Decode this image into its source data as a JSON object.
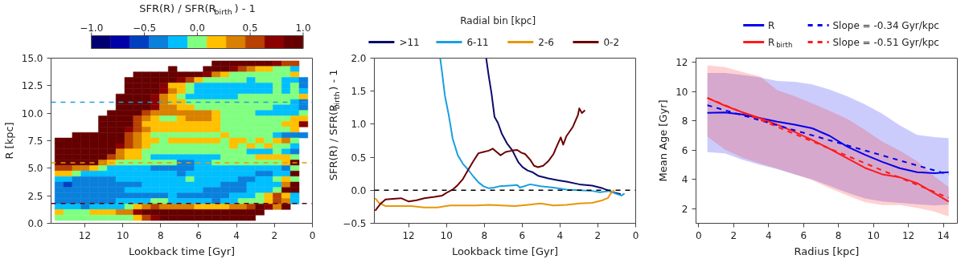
{
  "chart_data": [
    {
      "type": "heatmap",
      "xlabel": "Lookback time [Gyr]",
      "ylabel": "R [kpc]",
      "clabel": "SFR(R) / SFR(R$_{birth}$) - 1",
      "x": [
        13.35,
        12.89,
        12.43,
        11.97,
        11.51,
        11.05,
        10.59,
        10.13,
        9.67,
        9.21,
        8.75,
        8.29,
        7.83,
        7.37,
        6.91,
        6.45,
        5.99,
        5.53,
        5.07,
        4.61,
        4.15,
        3.69,
        3.23,
        2.77,
        2.31,
        1.85,
        1.39,
        0.93,
        0.47
      ],
      "y": [
        14.5,
        14.0,
        13.5,
        13.0,
        12.5,
        12.0,
        11.5,
        11.0,
        10.5,
        10.0,
        9.5,
        9.0,
        8.5,
        8.0,
        7.5,
        7.0,
        6.5,
        6.0,
        5.5,
        5.0,
        4.5,
        4.0,
        3.5,
        3.0,
        2.5,
        2.0,
        1.5,
        1.0,
        0.5
      ],
      "cells": [
        [
          null,
          null,
          null,
          null,
          null,
          null,
          null,
          null,
          null,
          null,
          null,
          null,
          null,
          null,
          null,
          null,
          null,
          null,
          0.9,
          0.9,
          0.9,
          0.9,
          0.9,
          0.9,
          0.9,
          0.7,
          0.5,
          0.5,
          null
        ],
        [
          null,
          null,
          null,
          null,
          null,
          null,
          null,
          null,
          null,
          null,
          null,
          null,
          null,
          0.9,
          null,
          null,
          null,
          0.9,
          0.9,
          0.9,
          0.7,
          0.5,
          0.4,
          0.2,
          0.2,
          0,
          0,
          -0.2,
          null
        ],
        [
          null,
          null,
          null,
          null,
          null,
          null,
          null,
          null,
          null,
          0.9,
          0.9,
          0.9,
          0.9,
          0.9,
          0.9,
          0.9,
          0.9,
          0.7,
          0.4,
          0.2,
          0,
          0,
          0,
          0,
          0,
          0,
          0,
          0.2,
          null
        ],
        [
          null,
          null,
          null,
          null,
          null,
          null,
          null,
          null,
          0.9,
          0.9,
          0.9,
          0.9,
          0.9,
          0.9,
          0.7,
          0.5,
          0.2,
          0,
          0,
          0,
          0,
          0,
          -0.2,
          0,
          0,
          0,
          -0.2,
          -0.2,
          -0.4
        ],
        [
          null,
          null,
          null,
          null,
          null,
          null,
          null,
          null,
          0.9,
          0.9,
          0.9,
          0.9,
          0.7,
          0.2,
          0.2,
          0,
          -0.2,
          -0.2,
          -0.2,
          -0.2,
          -0.2,
          -0.2,
          -0.2,
          -0.2,
          -0.2,
          0,
          -0.2,
          0,
          -0.4
        ],
        [
          null,
          null,
          null,
          null,
          null,
          null,
          null,
          null,
          0.9,
          0.9,
          0.9,
          0.9,
          0.7,
          0.4,
          0.2,
          0,
          -0.2,
          -0.2,
          -0.2,
          -0.2,
          -0.2,
          -0.2,
          -0.2,
          -0.2,
          -0.2,
          0,
          -0.2,
          0,
          -0.2
        ],
        [
          null,
          null,
          null,
          null,
          null,
          null,
          null,
          0.9,
          0.9,
          0.9,
          0.9,
          0.7,
          0.4,
          0.2,
          0,
          -0.2,
          -0.2,
          -0.2,
          -0.2,
          -0.2,
          -0.2,
          0,
          0,
          0,
          0,
          0,
          0,
          0,
          0.2
        ],
        [
          null,
          null,
          null,
          null,
          null,
          null,
          null,
          0.9,
          0.9,
          0.9,
          0.9,
          0.7,
          0.4,
          0.2,
          0.2,
          0,
          0,
          0,
          0,
          0,
          0,
          0,
          0,
          0,
          0,
          0,
          0,
          -0.2,
          -0.4
        ],
        [
          null,
          null,
          null,
          null,
          null,
          null,
          null,
          0.9,
          0.9,
          0.9,
          0.9,
          0.7,
          0.4,
          0.4,
          0.2,
          0.2,
          0,
          0,
          0,
          0,
          0,
          0,
          0,
          0,
          0,
          -0.2,
          -0.2,
          -0.2,
          -0.4
        ],
        [
          null,
          null,
          null,
          null,
          null,
          null,
          0.9,
          0.9,
          0.9,
          0.9,
          0.5,
          0.4,
          0.4,
          0.4,
          0.4,
          0.4,
          0.4,
          0.4,
          0.2,
          0,
          0,
          0,
          0,
          -0.2,
          -0.2,
          -0.2,
          -0.2,
          -0.2,
          0
        ],
        [
          null,
          null,
          null,
          null,
          null,
          0.9,
          0.9,
          0.9,
          0.9,
          0.5,
          0.4,
          0.2,
          0,
          0,
          0.2,
          0.4,
          0.4,
          0.4,
          0.2,
          0,
          0,
          0,
          0,
          0,
          0,
          0,
          0,
          0.2,
          0.2
        ],
        [
          null,
          null,
          null,
          null,
          null,
          0.9,
          0.9,
          0.9,
          0.9,
          0.5,
          0.2,
          0.2,
          0.2,
          0.2,
          0.2,
          0.2,
          0.2,
          0.2,
          0.2,
          0,
          0,
          0,
          0,
          0,
          0,
          0,
          0.2,
          0.2,
          0.7
        ],
        [
          null,
          null,
          null,
          null,
          null,
          0.9,
          0.9,
          0.9,
          0.7,
          0.5,
          0.4,
          0.2,
          0.2,
          0.2,
          0.2,
          0.2,
          0.2,
          0.2,
          0.2,
          0,
          0,
          0,
          0,
          0,
          0,
          0,
          0,
          0.2,
          null
        ],
        [
          null,
          null,
          0.9,
          0.9,
          0.9,
          0.9,
          0.9,
          0.9,
          0.5,
          0.4,
          0.2,
          0,
          0,
          0,
          0,
          0,
          0,
          0,
          0,
          0.2,
          0,
          0,
          0,
          0,
          0,
          -0.2,
          -0.4,
          -0.4,
          -0.4
        ],
        [
          0.9,
          0.9,
          0.9,
          0.9,
          0.9,
          0.9,
          0.9,
          0.9,
          0.5,
          0.4,
          0.2,
          0.2,
          0,
          0.2,
          0.2,
          0.2,
          0.2,
          0.2,
          0.2,
          0,
          0.2,
          0.2,
          0,
          0.2,
          0,
          0.2,
          0.4,
          0,
          null
        ],
        [
          0.9,
          0.9,
          0.9,
          0.9,
          0.9,
          0.9,
          0.9,
          0.7,
          0.5,
          0.4,
          0.2,
          0,
          0,
          0,
          0,
          0,
          0,
          0,
          0,
          0,
          0.2,
          0,
          0.2,
          0,
          0.2,
          0,
          0,
          -0.2,
          null
        ],
        [
          0.9,
          0.9,
          0.9,
          0.9,
          0.9,
          0.9,
          0.9,
          0.4,
          0.2,
          0.2,
          0,
          0,
          0,
          0,
          0,
          0,
          0,
          0,
          0,
          0,
          0,
          0,
          -0.2,
          -0.2,
          -0.2,
          0,
          -0.2,
          -0.4,
          null
        ],
        [
          0.9,
          0.9,
          0.9,
          0.9,
          0.9,
          0.9,
          0.5,
          0.4,
          0.2,
          0.2,
          0,
          -0.2,
          -0.2,
          -0.2,
          -0.2,
          -0.2,
          -0.2,
          -0.2,
          -0.2,
          0,
          0,
          0,
          0,
          0.2,
          0.2,
          0.2,
          0.2,
          0,
          null
        ],
        [
          0.9,
          0.9,
          0.9,
          0.9,
          0.9,
          0.4,
          0.2,
          0,
          0,
          0,
          0,
          0,
          0,
          0,
          -0.4,
          -0.4,
          -0.2,
          -0.2,
          0,
          0,
          0,
          0,
          0,
          0,
          0,
          0,
          0.2,
          0.9,
          null
        ],
        [
          0.5,
          0.5,
          0.4,
          0.4,
          0.2,
          0,
          -0.2,
          -0.2,
          -0.2,
          -0.2,
          -0.2,
          -0.4,
          -0.4,
          -0.4,
          -0.4,
          -0.4,
          -0.2,
          -0.2,
          -0.2,
          -0.2,
          -0.2,
          -0.2,
          -0.2,
          -0.2,
          -0.2,
          -0.2,
          -0.4,
          0,
          null
        ],
        [
          0.2,
          0.2,
          0,
          -0.2,
          -0.2,
          -0.2,
          -0.2,
          -0.2,
          -0.2,
          -0.2,
          -0.2,
          -0.2,
          -0.2,
          -0.2,
          -0.4,
          -0.2,
          -0.2,
          -0.2,
          -0.2,
          -0.2,
          -0.2,
          -0.2,
          -0.2,
          -0.4,
          -0.4,
          -0.2,
          -0.2,
          0.9,
          null
        ],
        [
          -0.2,
          -0.2,
          -0.4,
          -0.4,
          -0.4,
          -0.4,
          -0.4,
          -0.2,
          -0.2,
          -0.2,
          -0.2,
          -0.2,
          -0.2,
          -0.2,
          -0.2,
          0,
          -0.2,
          -0.2,
          -0.2,
          -0.2,
          -0.2,
          -0.4,
          -0.4,
          -0.2,
          -0.2,
          0,
          0.2,
          0,
          null
        ],
        [
          -0.4,
          -0.5,
          -0.4,
          -0.4,
          -0.4,
          -0.4,
          -0.4,
          -0.4,
          -0.4,
          -0.4,
          -0.2,
          -0.2,
          -0.2,
          -0.2,
          -0.2,
          -0.2,
          -0.2,
          -0.2,
          -0.2,
          -0.4,
          -0.4,
          -0.4,
          -0.2,
          -0.2,
          -0.2,
          -0.2,
          0.4,
          0.9,
          null
        ],
        [
          -0.4,
          -0.4,
          -0.4,
          -0.4,
          -0.4,
          -0.4,
          -0.4,
          -0.4,
          -0.2,
          -0.2,
          -0.2,
          -0.2,
          -0.2,
          -0.2,
          -0.2,
          -0.2,
          -0.2,
          -0.4,
          -0.4,
          -0.4,
          -0.4,
          -0.4,
          -0.2,
          -0.2,
          -0.2,
          0,
          0.9,
          0.9,
          null
        ],
        [
          -0.4,
          -0.4,
          -0.4,
          -0.4,
          -0.4,
          -0.4,
          -0.4,
          -0.4,
          -0.4,
          -0.4,
          -0.4,
          -0.4,
          -0.4,
          -0.2,
          -0.4,
          -0.4,
          -0.4,
          -0.4,
          -0.4,
          -0.4,
          -0.2,
          -0.2,
          -0.2,
          0,
          0.2,
          0.5,
          0.2,
          -0.2,
          null
        ],
        [
          -0.4,
          -0.4,
          -0.4,
          -0.4,
          -0.4,
          -0.4,
          -0.4,
          -0.2,
          -0.2,
          -0.2,
          -0.2,
          0,
          0,
          -0.2,
          -0.2,
          -0.2,
          -0.2,
          -0.2,
          -0.4,
          -0.2,
          -0.2,
          0,
          0,
          0,
          0.2,
          0.5,
          0.4,
          -0.2,
          null
        ],
        [
          -0.2,
          -0.2,
          -0.2,
          -0.4,
          -0.2,
          -0.2,
          -0.2,
          -0.2,
          0,
          0.2,
          0.4,
          0.5,
          0.4,
          0.4,
          0.4,
          0.4,
          0.2,
          0.2,
          0.2,
          0.2,
          0.4,
          0.4,
          0.5,
          0.9,
          0.7,
          0.4,
          0.9,
          null,
          null
        ],
        [
          0.2,
          0,
          0,
          0,
          0.2,
          0.2,
          0.2,
          0.4,
          0.4,
          0.7,
          0.9,
          0.9,
          0.9,
          0.9,
          0.9,
          0.9,
          0.9,
          0.9,
          0.9,
          0.9,
          0.9,
          0.9,
          0.9,
          0.9,
          null,
          null,
          null,
          null,
          null
        ],
        [
          0,
          0,
          0,
          0,
          0,
          0,
          0,
          0,
          0,
          0.2,
          0.5,
          0.7,
          0.9,
          0.9,
          0.9,
          0.9,
          0.9,
          0.9,
          0.9,
          0.9,
          0.9,
          0.9,
          0.9,
          null,
          null,
          null,
          null,
          null,
          null
        ]
      ],
      "colors": [
        "#000070",
        "#0000a8",
        "#0040c0",
        "#0a80dc",
        "#00bfff",
        "#80ff80",
        "#ffc000",
        "#d98000",
        "#b84000",
        "#8b0000",
        "#660000"
      ],
      "clim": [
        -1,
        1
      ],
      "cticks": [
        {
          "value": -1,
          "label": "−1.0"
        },
        {
          "value": -0.5,
          "label": "−0.5"
        },
        {
          "value": 0,
          "label": "0.0"
        },
        {
          "value": 0.5,
          "label": "0.5"
        },
        {
          "value": 1,
          "label": "1.0"
        }
      ],
      "xlim": [
        13.78,
        0
      ],
      "ylim": [
        0,
        15
      ],
      "xticks": [
        12,
        10,
        8,
        6,
        4,
        2,
        0
      ],
      "yticks": [
        {
          "value": 0,
          "label": "0.0"
        },
        2.5,
        {
          "value": 5,
          "label": "5.0"
        },
        7.5,
        {
          "value": 10,
          "label": "10.0"
        },
        12.5,
        {
          "value": 15,
          "label": "15.0"
        }
      ],
      "ref_lines": [
        {
          "axis": "y",
          "value": 11,
          "color": "#1f9fe0",
          "line_style": "dashed"
        },
        {
          "axis": "y",
          "value": 5.5,
          "color": "#e89a00",
          "line_style": "dashed"
        },
        {
          "axis": "y",
          "value": 1.8,
          "color": "#660000",
          "line_style": "dashed"
        }
      ]
    },
    {
      "type": "line",
      "legend_title": "Radial bin [kpc]",
      "legend": "top",
      "xlabel": "Lookback time [Gyr]",
      "ylabel": "SFR(R) / SFR(R$_{birth}$) - 1",
      "xlim": [
        13.81,
        0
      ],
      "ylim": [
        -0.5,
        2
      ],
      "xticks": [
        12,
        10,
        8,
        6,
        4,
        2,
        0
      ],
      "yticks": [
        {
          "value": -0.5,
          "label": "−0.5"
        },
        {
          "value": 0,
          "label": "0.0"
        },
        0.5,
        {
          "value": 1,
          "label": "1.0"
        },
        1.5,
        {
          "value": 2,
          "label": "2.0"
        }
      ],
      "series": [
        {
          "name": ">11",
          "color": "#0b0b6b",
          "x": [
            7.9,
            7.76,
            7.62,
            7.46,
            7.28,
            7.08,
            6.8,
            6.53,
            6.39,
            6.19,
            5.98,
            5.71,
            5.43,
            5.16,
            4.62,
            4.07,
            3.66,
            2.98,
            2.3,
            1.75,
            1.21,
            0.79
          ],
          "values": [
            2.0,
            1.72,
            1.47,
            1.11,
            1.02,
            0.86,
            0.71,
            0.61,
            0.53,
            0.42,
            0.35,
            0.3,
            0.27,
            0.22,
            0.18,
            0.15,
            0.13,
            0.09,
            0.07,
            0.03,
            -0.03,
            -0.06
          ]
        },
        {
          "name": "6-11",
          "color": "#1a9fe0",
          "x": [
            10.33,
            10.22,
            10.08,
            9.88,
            9.67,
            9.4,
            9.13,
            8.85,
            8.58,
            8.31,
            8.04,
            7.76,
            7.49,
            7.21,
            6.67,
            6.26,
            6.12,
            5.57,
            5.03,
            4.34,
            3.66,
            2.98,
            2.3,
            1.89,
            1.34,
            1.07,
            0.75,
            0.59
          ],
          "values": [
            2.0,
            1.76,
            1.43,
            1.14,
            0.78,
            0.53,
            0.4,
            0.31,
            0.21,
            0.12,
            0.06,
            0.03,
            0.04,
            0.06,
            0.07,
            0.08,
            0.04,
            0.09,
            0.06,
            0.04,
            0.01,
            0.0,
            -0.01,
            -0.03,
            -0.01,
            -0.05,
            -0.08,
            -0.05
          ]
        },
        {
          "name": "2-6",
          "color": "#e8960a",
          "x": [
            13.77,
            13.57,
            13.22,
            12.54,
            11.86,
            11.17,
            10.49,
            9.81,
            9.13,
            8.44,
            7.76,
            7.08,
            6.39,
            5.71,
            5.03,
            4.34,
            3.66,
            2.98,
            2.3,
            1.75,
            1.48,
            1.27,
            1.13
          ],
          "values": [
            -0.12,
            -0.19,
            -0.24,
            -0.24,
            -0.24,
            -0.26,
            -0.26,
            -0.23,
            -0.23,
            -0.23,
            -0.22,
            -0.23,
            -0.24,
            -0.22,
            -0.2,
            -0.23,
            -0.22,
            -0.2,
            -0.19,
            -0.15,
            -0.12,
            -0.03,
            0.0
          ]
        },
        {
          "name": "0-2",
          "color": "#6b0000",
          "x": [
            13.77,
            13.5,
            13.22,
            12.81,
            12.4,
            11.99,
            11.58,
            11.17,
            10.63,
            10.22,
            9.95,
            9.67,
            9.4,
            9.13,
            8.85,
            8.58,
            8.31,
            8.04,
            7.76,
            7.55,
            7.35,
            7.14,
            6.87,
            6.53,
            6.26,
            6.05,
            5.85,
            5.57,
            5.37,
            5.16,
            4.89,
            4.62,
            4.34,
            4.21,
            3.96,
            3.83,
            3.66,
            3.32,
            3.05,
            2.98,
            2.84,
            2.68
          ],
          "values": [
            -0.31,
            -0.21,
            -0.14,
            -0.13,
            -0.12,
            -0.17,
            -0.15,
            -0.12,
            -0.1,
            -0.08,
            -0.03,
            0.01,
            0.08,
            0.17,
            0.31,
            0.44,
            0.56,
            0.58,
            0.6,
            0.63,
            0.58,
            0.53,
            0.58,
            0.6,
            0.61,
            0.57,
            0.55,
            0.46,
            0.37,
            0.35,
            0.37,
            0.44,
            0.55,
            0.64,
            0.8,
            0.69,
            0.82,
            0.96,
            1.14,
            1.24,
            1.17,
            1.21
          ]
        }
      ],
      "ref_lines": [
        {
          "axis": "y",
          "value": 0,
          "color": "#000000",
          "line_style": "dashed"
        }
      ]
    },
    {
      "type": "line",
      "legend": "top",
      "xlabel": "Radius [kpc]",
      "ylabel": "Mean Age [Gyr]",
      "xlim": [
        -0.15,
        14.8
      ],
      "ylim": [
        1.0,
        12.3
      ],
      "xticks": [
        0,
        2,
        4,
        6,
        8,
        10,
        12,
        14
      ],
      "yticks": [
        2,
        4,
        6,
        8,
        10,
        12
      ],
      "series": [
        {
          "name": "R",
          "color": "#0000ee",
          "x": [
            0.5,
            1.5,
            2.5,
            3.5,
            4.5,
            5.5,
            6.5,
            7.5,
            8.5,
            9.5,
            10.5,
            11.5,
            12.5,
            13.5,
            14.3
          ],
          "values": [
            8.56,
            8.59,
            8.45,
            8.2,
            7.95,
            7.75,
            7.5,
            6.98,
            6.25,
            5.7,
            5.2,
            4.77,
            4.5,
            4.43,
            4.5
          ],
          "upper": [
            11.28,
            11.28,
            11.15,
            10.98,
            10.73,
            10.68,
            10.5,
            10.15,
            9.7,
            9.15,
            8.5,
            7.7,
            7.05,
            6.9,
            6.83
          ],
          "lower": [
            5.87,
            5.79,
            5.35,
            5.0,
            4.7,
            4.35,
            4.0,
            3.55,
            3.1,
            2.7,
            2.5,
            2.4,
            2.3,
            2.22,
            2.28
          ]
        },
        {
          "name": "R$_{birth}$",
          "color": "#ff1a1a",
          "x": [
            0.5,
            1.5,
            2.5,
            3.5,
            4.5,
            5.5,
            6.5,
            7.5,
            8.5,
            9.5,
            10.5,
            11.5,
            12.5,
            13.5,
            14.3
          ],
          "values": [
            9.58,
            9.05,
            8.6,
            8.2,
            7.75,
            7.25,
            6.7,
            6.1,
            5.45,
            4.8,
            4.35,
            4.15,
            3.75,
            3.05,
            2.49
          ],
          "upper": [
            11.8,
            11.68,
            11.35,
            11.05,
            10.1,
            9.7,
            9.2,
            8.7,
            8.15,
            7.4,
            6.6,
            5.98,
            5.25,
            4.2,
            3.48
          ],
          "lower": [
            6.94,
            6.05,
            5.5,
            5.1,
            4.75,
            4.35,
            3.95,
            3.4,
            2.9,
            2.45,
            2.25,
            2.25,
            2.05,
            1.8,
            1.46
          ]
        },
        {
          "name": "Slope = -0.34 Gyr/kpc",
          "color": "#0000ee",
          "line_style": "dashed",
          "x": [
            0.5,
            14.3
          ],
          "values": [
            9.08,
            4.34
          ]
        },
        {
          "name": "Slope = -0.51 Gyr/kpc",
          "color": "#ff1a1a",
          "line_style": "dashed",
          "x": [
            0.5,
            14.3
          ],
          "values": [
            9.58,
            2.74
          ]
        }
      ]
    }
  ]
}
